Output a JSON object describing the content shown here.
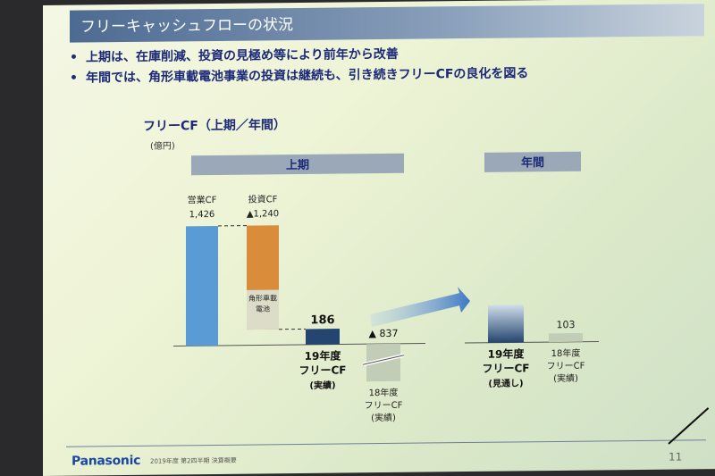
{
  "slide": {
    "title": "フリーキャッシュフローの状況",
    "bullets": [
      "上期は、在庫削減、投資の見極め等により前年から改善",
      "年間では、角形車載電池事業の投資は継続も、引き続きフリーCFの良化を図る"
    ],
    "bullet_marker": "•",
    "footer": {
      "logo": "Panasonic",
      "text": "2019年度 第2四半期 決算概要",
      "page": "11"
    }
  },
  "chart_data": {
    "type": "bar",
    "title": "フリーCF（上期／年間）",
    "unit": "(億円)",
    "sections": [
      "上期",
      "年間"
    ],
    "bars": [
      {
        "section": "上期",
        "label": "営業CF",
        "value": 1426,
        "value_label": "1,426",
        "color": "#5b9bd5"
      },
      {
        "section": "上期",
        "label": "投資CF",
        "value": -1240,
        "value_label": "▲1,240",
        "color": "#d98c3a",
        "sub_label": [
          "角形車載",
          "電池"
        ]
      },
      {
        "section": "上期",
        "label": [
          "19年度",
          "フリーCF",
          "(実績)"
        ],
        "value": 186,
        "value_label": "186",
        "color": "#24456f"
      },
      {
        "section": "上期",
        "label": [
          "18年度",
          "フリーCF",
          "(実績)"
        ],
        "value": -837,
        "value_label": "▲ 837",
        "color": "#c2cdb8"
      },
      {
        "section": "年間",
        "label": [
          "19年度",
          "フリーCF",
          "(見通し)"
        ],
        "value": null,
        "value_label": "",
        "color": "#24456f"
      },
      {
        "section": "年間",
        "label": [
          "18年度",
          "フリーCF",
          "(実績)"
        ],
        "value": 103,
        "value_label": "103",
        "color": "#c2cdb8"
      }
    ],
    "colors": {
      "accent_blue": "#5b9bd5",
      "orange": "#d98c3a",
      "navy": "#24456f",
      "grey": "#c2cdb8",
      "text_navy": "#1d2a78"
    }
  }
}
